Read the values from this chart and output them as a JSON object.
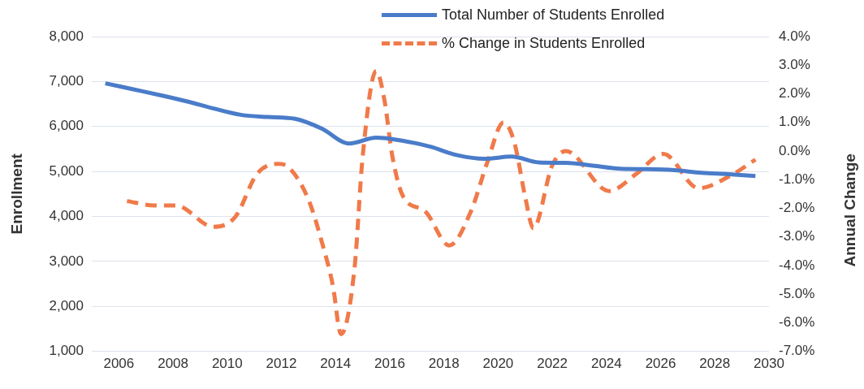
{
  "chart_data": {
    "type": "line",
    "ylabel": "Enrollment",
    "y2label": "Annual Change",
    "grid": "y",
    "legend": "top right",
    "marker": "none",
    "xlim": [
      2005,
      2030
    ],
    "xticks": [
      2006,
      2008,
      2010,
      2012,
      2014,
      2016,
      2018,
      2020,
      2022,
      2024,
      2026,
      2028,
      2030
    ],
    "ylim": [
      1000,
      8000
    ],
    "yticks": [
      {
        "value": 1000,
        "label": "1,000"
      },
      {
        "value": 2000,
        "label": "2,000"
      },
      {
        "value": 3000,
        "label": "3,000"
      },
      {
        "value": 4000,
        "label": "4,000"
      },
      {
        "value": 5000,
        "label": "5,000"
      },
      {
        "value": 6000,
        "label": "6,000"
      },
      {
        "value": 7000,
        "label": "7,000"
      },
      {
        "value": 8000,
        "label": "8,000"
      }
    ],
    "y2lim": [
      -7,
      4
    ],
    "y2ticks": [
      {
        "value": -7,
        "label": "-7.0%"
      },
      {
        "value": -6,
        "label": "-6.0%"
      },
      {
        "value": -5,
        "label": "-5.0%"
      },
      {
        "value": -4,
        "label": "-4.0%"
      },
      {
        "value": -3,
        "label": "-3.0%"
      },
      {
        "value": -2,
        "label": "-2.0%"
      },
      {
        "value": -1,
        "label": "-1.0%"
      },
      {
        "value": 0,
        "label": "0.0%"
      },
      {
        "value": 1,
        "label": "1.0%"
      },
      {
        "value": 2,
        "label": "2.0%"
      },
      {
        "value": 3,
        "label": "3.0%"
      },
      {
        "value": 4,
        "label": "4.0%"
      }
    ],
    "series": [
      {
        "name": "Total Number of Students Enrolled",
        "color": "#4a7cc9",
        "line_style": "solid",
        "x": [
          2005.5,
          2006.5,
          2007.5,
          2008.5,
          2009.5,
          2010.5,
          2011.5,
          2012.5,
          2013.5,
          2014.5,
          2015.5,
          2016.5,
          2017.5,
          2018.5,
          2019.5,
          2020.5,
          2021.5,
          2022.5,
          2023.5,
          2024.5,
          2025.5,
          2026.5,
          2027.5,
          2028.5,
          2029.5
        ],
        "values": [
          6960,
          6830,
          6700,
          6560,
          6400,
          6260,
          6210,
          6170,
          5950,
          5620,
          5750,
          5680,
          5550,
          5360,
          5280,
          5330,
          5200,
          5190,
          5130,
          5060,
          5050,
          5030,
          4970,
          4940,
          4900
        ]
      },
      {
        "name": "% Change in Students Enrolled",
        "color": "#f07a4a",
        "line_style": "dashed",
        "axis": "y2",
        "x": [
          2006.3,
          2007.3,
          2008.1,
          2009.5,
          2010.3,
          2011.1,
          2011.9,
          2012.3,
          2013.0,
          2013.5,
          2013.9,
          2014.2,
          2014.7,
          2015.0,
          2015.5,
          2015.8,
          2016.1,
          2016.5,
          2017.3,
          2018.2,
          2019.0,
          2019.6,
          2020.2,
          2020.6,
          2021.0,
          2021.3,
          2022.0,
          2022.5,
          2024.1,
          2025.1,
          2026.1,
          2027.4,
          2028.6,
          2029.5
        ],
        "values": [
          -1.75,
          -1.9,
          -1.9,
          -2.65,
          -2.3,
          -0.8,
          -0.45,
          -0.6,
          -1.7,
          -3.2,
          -4.7,
          -6.4,
          -4.1,
          -0.2,
          2.8,
          1.8,
          -0.2,
          -1.6,
          -2.1,
          -3.3,
          -2.1,
          -0.4,
          1.0,
          0.3,
          -1.6,
          -2.7,
          -0.5,
          0.0,
          -1.4,
          -0.8,
          -0.1,
          -1.3,
          -0.85,
          -0.3
        ]
      }
    ]
  }
}
